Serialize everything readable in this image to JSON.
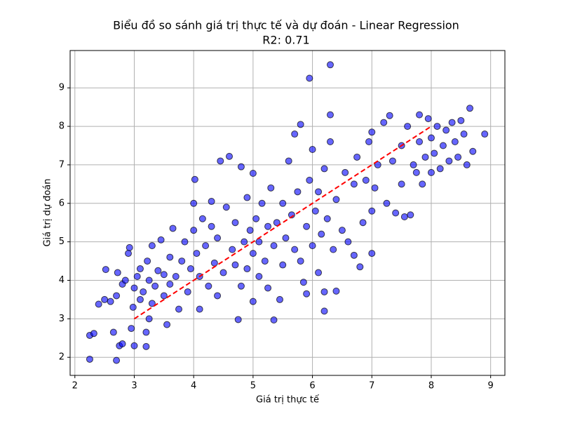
{
  "chart_data": {
    "type": "scatter",
    "title": "Biểu đồ so sánh giá trị thực tế và dự đoán - Linear Regression",
    "subtitle": "R2: 0.71",
    "x_label": "Giá trị thực tế",
    "y_label": "Giá trị dự đoán",
    "xlim": [
      1.92,
      9.24
    ],
    "ylim": [
      1.53,
      9.97
    ],
    "xticks": [
      2,
      3,
      4,
      5,
      6,
      7,
      8,
      9
    ],
    "yticks": [
      2,
      3,
      4,
      5,
      6,
      7,
      8,
      9
    ],
    "grid": true,
    "color": "#0000ff",
    "x": [
      2.25,
      2.7,
      2.25,
      2.32,
      2.4,
      2.5,
      2.52,
      2.6,
      2.65,
      2.7,
      2.72,
      2.75,
      2.8,
      2.8,
      2.85,
      2.9,
      2.92,
      2.95,
      2.98,
      3.0,
      3.0,
      3.05,
      3.1,
      3.1,
      3.15,
      3.2,
      3.2,
      3.22,
      3.25,
      3.25,
      3.3,
      3.3,
      3.35,
      3.4,
      3.45,
      3.5,
      3.5,
      3.55,
      3.6,
      3.6,
      3.65,
      3.7,
      3.75,
      3.8,
      3.85,
      3.9,
      3.95,
      4.0,
      4.0,
      4.02,
      4.05,
      4.1,
      4.1,
      4.15,
      4.2,
      4.25,
      4.3,
      4.3,
      4.35,
      4.4,
      4.4,
      4.45,
      4.5,
      4.55,
      4.6,
      4.65,
      4.7,
      4.7,
      4.75,
      4.8,
      4.8,
      4.85,
      4.9,
      4.9,
      4.95,
      5.0,
      5.0,
      5.0,
      5.05,
      5.1,
      5.1,
      5.15,
      5.2,
      5.25,
      5.25,
      5.3,
      5.35,
      5.35,
      5.4,
      5.45,
      5.5,
      5.5,
      5.55,
      5.6,
      5.65,
      5.7,
      5.7,
      5.75,
      5.8,
      5.8,
      5.85,
      5.9,
      5.9,
      5.95,
      5.95,
      6.0,
      6.0,
      6.05,
      6.1,
      6.1,
      6.15,
      6.2,
      6.2,
      6.2,
      6.25,
      6.3,
      6.3,
      6.3,
      6.35,
      6.4,
      6.4,
      6.5,
      6.55,
      6.6,
      6.7,
      6.7,
      6.75,
      6.8,
      6.85,
      6.9,
      6.95,
      7.0,
      7.0,
      7.0,
      7.05,
      7.1,
      7.2,
      7.25,
      7.3,
      7.35,
      7.4,
      7.5,
      7.5,
      7.55,
      7.6,
      7.65,
      7.7,
      7.75,
      7.8,
      7.8,
      7.85,
      7.9,
      7.95,
      8.0,
      8.0,
      8.05,
      8.1,
      8.15,
      8.2,
      8.25,
      8.3,
      8.35,
      8.4,
      8.45,
      8.5,
      8.55,
      8.6,
      8.65,
      8.7,
      8.9
    ],
    "values": [
      1.95,
      1.92,
      2.57,
      2.62,
      3.38,
      3.5,
      4.28,
      3.45,
      2.65,
      3.6,
      4.2,
      2.3,
      2.35,
      3.9,
      4.0,
      4.7,
      4.85,
      2.75,
      3.3,
      3.8,
      2.3,
      4.1,
      3.5,
      4.3,
      3.7,
      2.28,
      2.65,
      4.5,
      3.0,
      4.0,
      3.4,
      4.9,
      3.85,
      4.25,
      5.05,
      3.6,
      4.15,
      2.85,
      4.6,
      3.9,
      5.35,
      4.1,
      3.25,
      4.5,
      5.0,
      3.7,
      4.3,
      5.3,
      6.0,
      6.62,
      4.7,
      3.25,
      4.1,
      5.6,
      4.9,
      3.85,
      5.4,
      6.05,
      4.45,
      3.6,
      5.1,
      7.1,
      4.2,
      5.9,
      7.22,
      4.8,
      4.4,
      5.5,
      2.98,
      6.95,
      3.85,
      5.0,
      4.3,
      6.15,
      5.3,
      3.45,
      4.7,
      6.78,
      5.6,
      4.1,
      5.0,
      6.0,
      4.5,
      5.4,
      3.8,
      6.4,
      2.97,
      4.9,
      5.5,
      3.5,
      4.4,
      6.0,
      5.1,
      7.1,
      5.7,
      4.8,
      7.8,
      6.3,
      8.05,
      4.5,
      3.95,
      5.4,
      3.65,
      9.25,
      6.6,
      4.9,
      7.4,
      5.8,
      4.2,
      6.3,
      5.2,
      3.2,
      3.7,
      6.9,
      5.6,
      9.6,
      8.3,
      7.6,
      4.8,
      3.72,
      6.1,
      5.3,
      6.8,
      5.0,
      4.65,
      6.5,
      7.2,
      4.35,
      5.5,
      6.6,
      7.6,
      4.7,
      5.8,
      7.85,
      6.4,
      7.0,
      8.1,
      6.0,
      8.28,
      7.1,
      5.75,
      6.5,
      7.5,
      5.65,
      8.0,
      5.7,
      7.0,
      6.8,
      8.3,
      7.6,
      6.5,
      7.2,
      8.2,
      6.8,
      7.7,
      7.3,
      8.0,
      6.9,
      7.5,
      7.9,
      7.1,
      8.1,
      7.6,
      7.2,
      8.15,
      7.8,
      7.0,
      8.47,
      7.35,
      7.8
    ],
    "reference_line": {
      "x": [
        3,
        8
      ],
      "values": [
        3,
        8
      ],
      "color": "#ff0000"
    }
  }
}
